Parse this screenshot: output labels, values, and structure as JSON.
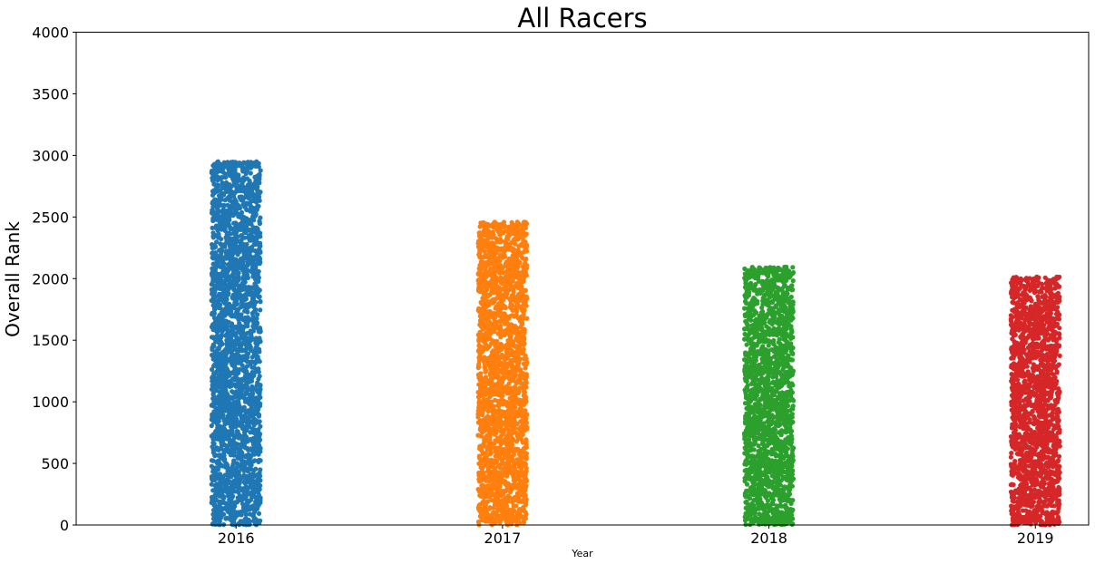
{
  "chart_data": {
    "type": "scatter",
    "subtype": "strip",
    "title": "All Racers",
    "xlabel": "Year",
    "ylabel": "Overall Rank",
    "categories": [
      "2016",
      "2017",
      "2018",
      "2019"
    ],
    "ylim": [
      0,
      4000
    ],
    "yticks": [
      "0",
      "500",
      "1000",
      "1500",
      "2000",
      "2500",
      "3000",
      "3500",
      "4000"
    ],
    "grid": false,
    "legend": "none",
    "series": [
      {
        "category": "2016",
        "color": "#1f77b4",
        "min": 1,
        "max": 2950
      },
      {
        "category": "2017",
        "color": "#ff7f0e",
        "min": 1,
        "max": 2460
      },
      {
        "category": "2018",
        "color": "#2ca02c",
        "min": 1,
        "max": 2095
      },
      {
        "category": "2019",
        "color": "#d62728",
        "min": 1,
        "max": 2015
      }
    ]
  }
}
